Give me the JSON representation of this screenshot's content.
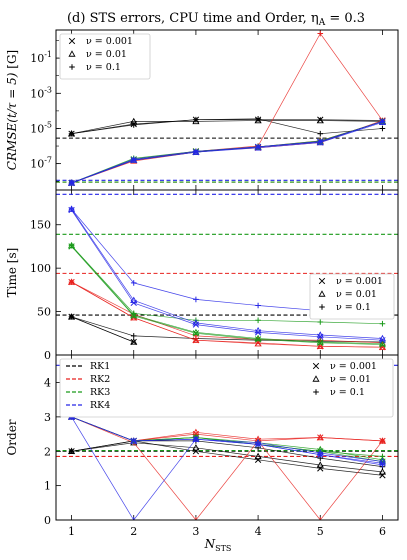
{
  "chart_data": {
    "type": "line",
    "title": "(d) STS errors, CPU time and Order, η_A = 0.3",
    "xlabel": "N_STS",
    "x": [
      1,
      2,
      3,
      4,
      5,
      6
    ],
    "xticks": [
      "1",
      "2",
      "3",
      "4",
      "5",
      "6"
    ],
    "method_colors": {
      "RK1": "#000000",
      "RK2": "#e8221f",
      "RK3": "#1a9a1a",
      "RK4": "#2626e6"
    },
    "nu_markers": {
      "ν = 0.001": "x",
      "ν = 0.01": "triangle",
      "ν = 0.1": "plus"
    },
    "panels": [
      {
        "id": "error",
        "ylabel": "CRMSE(t/τ = 5) [G]",
        "yscale": "log",
        "ylim_log10": [
          -8.5,
          0.6
        ],
        "yticks": [
          "10^-7",
          "10^-5",
          "10^-3",
          "10^-1"
        ],
        "legend": {
          "position": "top-left",
          "entries": [
            {
              "marker": "x",
              "label": "ν = 0.001"
            },
            {
              "marker": "triangle",
              "label": "ν = 0.01"
            },
            {
              "marker": "plus",
              "label": "ν = 0.1"
            }
          ]
        },
        "hlines": [
          {
            "method": "RK1",
            "value_log10": -5.55
          },
          {
            "method": "RK2",
            "value_log10": -8.05
          },
          {
            "method": "RK3",
            "value_log10": -8.05
          },
          {
            "method": "RK4",
            "value_log10": -7.95
          }
        ],
        "series": [
          {
            "method": "RK1",
            "nu": "ν = 0.001",
            "marker": "x",
            "log10": [
              -5.3,
              -4.75,
              -4.5,
              -4.5,
              -4.5,
              -4.55
            ]
          },
          {
            "method": "RK1",
            "nu": "ν = 0.01",
            "marker": "triangle",
            "log10": [
              -5.3,
              -4.6,
              -4.6,
              -4.55,
              -4.55,
              -4.6
            ]
          },
          {
            "method": "RK1",
            "nu": "ν = 0.1",
            "marker": "plus",
            "log10": [
              -5.3,
              -4.8,
              -4.5,
              -4.45,
              -5.3,
              -5.0
            ]
          },
          {
            "method": "RK2",
            "nu": "ν = 0.001",
            "marker": "x",
            "log10": [
              -8.1,
              -6.8,
              -6.3,
              -6.1,
              -5.8,
              -4.55
            ]
          },
          {
            "method": "RK2",
            "nu": "ν = 0.01",
            "marker": "triangle",
            "log10": [
              -8.1,
              -6.85,
              -6.35,
              -6.05,
              -5.7,
              -4.6
            ]
          },
          {
            "method": "RK2",
            "nu": "ν = 0.1",
            "marker": "plus",
            "log10": [
              -8.1,
              -6.8,
              -6.3,
              -6.0,
              0.4,
              -4.55
            ]
          },
          {
            "method": "RK3",
            "nu": "ν = 0.001",
            "marker": "x",
            "log10": [
              -8.1,
              -6.75,
              -6.3,
              -6.05,
              -5.75,
              -4.6
            ]
          },
          {
            "method": "RK3",
            "nu": "ν = 0.01",
            "marker": "triangle",
            "log10": [
              -8.1,
              -6.8,
              -6.35,
              -6.05,
              -5.75,
              -4.6
            ]
          },
          {
            "method": "RK3",
            "nu": "ν = 0.1",
            "marker": "plus",
            "log10": [
              -8.1,
              -6.7,
              -6.3,
              -6.05,
              -5.7,
              -4.6
            ]
          },
          {
            "method": "RK4",
            "nu": "ν = 0.001",
            "marker": "x",
            "log10": [
              -8.1,
              -6.8,
              -6.35,
              -6.05,
              -5.75,
              -4.6
            ]
          },
          {
            "method": "RK4",
            "nu": "ν = 0.01",
            "marker": "triangle",
            "log10": [
              -8.1,
              -6.8,
              -6.35,
              -6.1,
              -5.8,
              -4.65
            ]
          },
          {
            "method": "RK4",
            "nu": "ν = 0.1",
            "marker": "plus",
            "log10": [
              -8.1,
              -6.75,
              -6.3,
              -6.05,
              -5.75,
              -4.6
            ]
          }
        ]
      },
      {
        "id": "time",
        "ylabel": "Time [s]",
        "yscale": "linear",
        "ylim": [
          0,
          190
        ],
        "yticks": [
          0,
          50,
          100,
          150
        ],
        "legend": {
          "position": "center-right",
          "entries": [
            {
              "marker": "x",
              "label": "ν = 0.001"
            },
            {
              "marker": "triangle",
              "label": "ν = 0.01"
            },
            {
              "marker": "plus",
              "label": "ν = 0.1"
            }
          ]
        },
        "hlines": [
          {
            "method": "RK1",
            "value": 46
          },
          {
            "method": "RK2",
            "value": 94
          },
          {
            "method": "RK3",
            "value": 139
          },
          {
            "method": "RK4",
            "value": 185
          }
        ],
        "series": [
          {
            "method": "RK1",
            "nu": "ν = 0.001",
            "marker": "x",
            "values": [
              44,
              15,
              null,
              null,
              null,
              null
            ]
          },
          {
            "method": "RK1",
            "nu": "ν = 0.01",
            "marker": "triangle",
            "values": [
              44,
              15,
              null,
              null,
              null,
              null
            ]
          },
          {
            "method": "RK1",
            "nu": "ν = 0.1",
            "marker": "plus",
            "values": [
              44,
              22,
              19,
              17,
              16,
              15
            ]
          },
          {
            "method": "RK2",
            "nu": "ν = 0.001",
            "marker": "x",
            "values": [
              84,
              43,
              17,
              14,
              10,
              9
            ]
          },
          {
            "method": "RK2",
            "nu": "ν = 0.01",
            "marker": "triangle",
            "values": [
              84,
              43,
              17,
              13,
              10,
              9
            ]
          },
          {
            "method": "RK2",
            "nu": "ν = 0.1",
            "marker": "plus",
            "values": [
              84,
              47,
              22,
              18,
              17,
              14
            ]
          },
          {
            "method": "RK3",
            "nu": "ν = 0.001",
            "marker": "x",
            "values": [
              125,
              45,
              25,
              18,
              14,
              12
            ]
          },
          {
            "method": "RK3",
            "nu": "ν = 0.01",
            "marker": "triangle",
            "values": [
              126,
              46,
              26,
              19,
              15,
              13
            ]
          },
          {
            "method": "RK3",
            "nu": "ν = 0.1",
            "marker": "plus",
            "values": [
              126,
              48,
              40,
              40,
              38,
              36
            ]
          },
          {
            "method": "RK4",
            "nu": "ν = 0.001",
            "marker": "x",
            "values": [
              167,
              60,
              35,
              26,
              21,
              17
            ]
          },
          {
            "method": "RK4",
            "nu": "ν = 0.01",
            "marker": "triangle",
            "values": [
              168,
              63,
              37,
              28,
              23,
              19
            ]
          },
          {
            "method": "RK4",
            "nu": "ν = 0.1",
            "marker": "plus",
            "values": [
              168,
              83,
              64,
              57,
              51,
              48
            ]
          }
        ]
      },
      {
        "id": "order",
        "ylabel": "Order",
        "yscale": "linear",
        "ylim": [
          0,
          4.8
        ],
        "yticks": [
          0,
          1,
          2,
          3,
          4
        ],
        "legend": {
          "position": "top",
          "entries": [
            {
              "method": "RK1",
              "label": "RK1"
            },
            {
              "method": "RK2",
              "label": "RK2"
            },
            {
              "method": "RK3",
              "label": "RK3"
            },
            {
              "method": "RK4",
              "label": "RK4"
            },
            {
              "marker": "x",
              "label": "ν = 0.001"
            },
            {
              "marker": "triangle",
              "label": "ν = 0.01"
            },
            {
              "marker": "plus",
              "label": "ν = 0.1"
            }
          ]
        },
        "hlines": [
          {
            "method": "RK1",
            "value": 2.0
          },
          {
            "method": "RK2",
            "value": 1.85
          },
          {
            "method": "RK3",
            "value": 2.02
          },
          {
            "method": "RK4",
            "value": 4.5
          }
        ],
        "series": [
          {
            "method": "RK1",
            "nu": "ν = 0.001",
            "marker": "x",
            "values": [
              2.0,
              2.3,
              2.0,
              1.75,
              1.5,
              1.3
            ]
          },
          {
            "method": "RK1",
            "nu": "ν = 0.01",
            "marker": "triangle",
            "values": [
              2.0,
              2.25,
              2.1,
              1.85,
              1.6,
              1.4
            ]
          },
          {
            "method": "RK1",
            "nu": "ν = 0.1",
            "marker": "plus",
            "values": [
              2.0,
              2.3,
              2.3,
              2.1,
              1.8,
              1.55
            ]
          },
          {
            "method": "RK2",
            "nu": "ν = 0.001",
            "marker": "x",
            "values": [
              3.0,
              2.3,
              2.5,
              2.3,
              2.4,
              2.3
            ]
          },
          {
            "method": "RK2",
            "nu": "ν = 0.01",
            "marker": "triangle",
            "values": [
              3.0,
              2.3,
              2.55,
              2.35,
              2.4,
              2.3
            ]
          },
          {
            "method": "RK2",
            "nu": "ν = 0.1",
            "marker": "plus",
            "values": [
              3.0,
              2.25,
              0.0,
              2.3,
              0.0,
              2.3
            ]
          },
          {
            "method": "RK3",
            "nu": "ν = 0.001",
            "marker": "x",
            "values": [
              3.0,
              2.3,
              2.4,
              2.2,
              2.0,
              1.7
            ]
          },
          {
            "method": "RK3",
            "nu": "ν = 0.01",
            "marker": "triangle",
            "values": [
              3.0,
              2.3,
              2.4,
              2.25,
              2.05,
              1.75
            ]
          },
          {
            "method": "RK3",
            "nu": "ν = 0.1",
            "marker": "plus",
            "values": [
              3.0,
              2.3,
              2.4,
              2.2,
              2.0,
              1.85
            ]
          },
          {
            "method": "RK4",
            "nu": "ν = 0.001",
            "marker": "x",
            "values": [
              3.0,
              2.3,
              2.35,
              2.2,
              1.9,
              1.65
            ]
          },
          {
            "method": "RK4",
            "nu": "ν = 0.01",
            "marker": "triangle",
            "values": [
              3.0,
              2.3,
              2.35,
              2.25,
              1.95,
              1.7
            ]
          },
          {
            "method": "RK4",
            "nu": "ν = 0.1",
            "marker": "plus",
            "values": [
              3.0,
              0.0,
              2.35,
              2.2,
              1.9,
              1.6
            ]
          }
        ]
      }
    ]
  }
}
